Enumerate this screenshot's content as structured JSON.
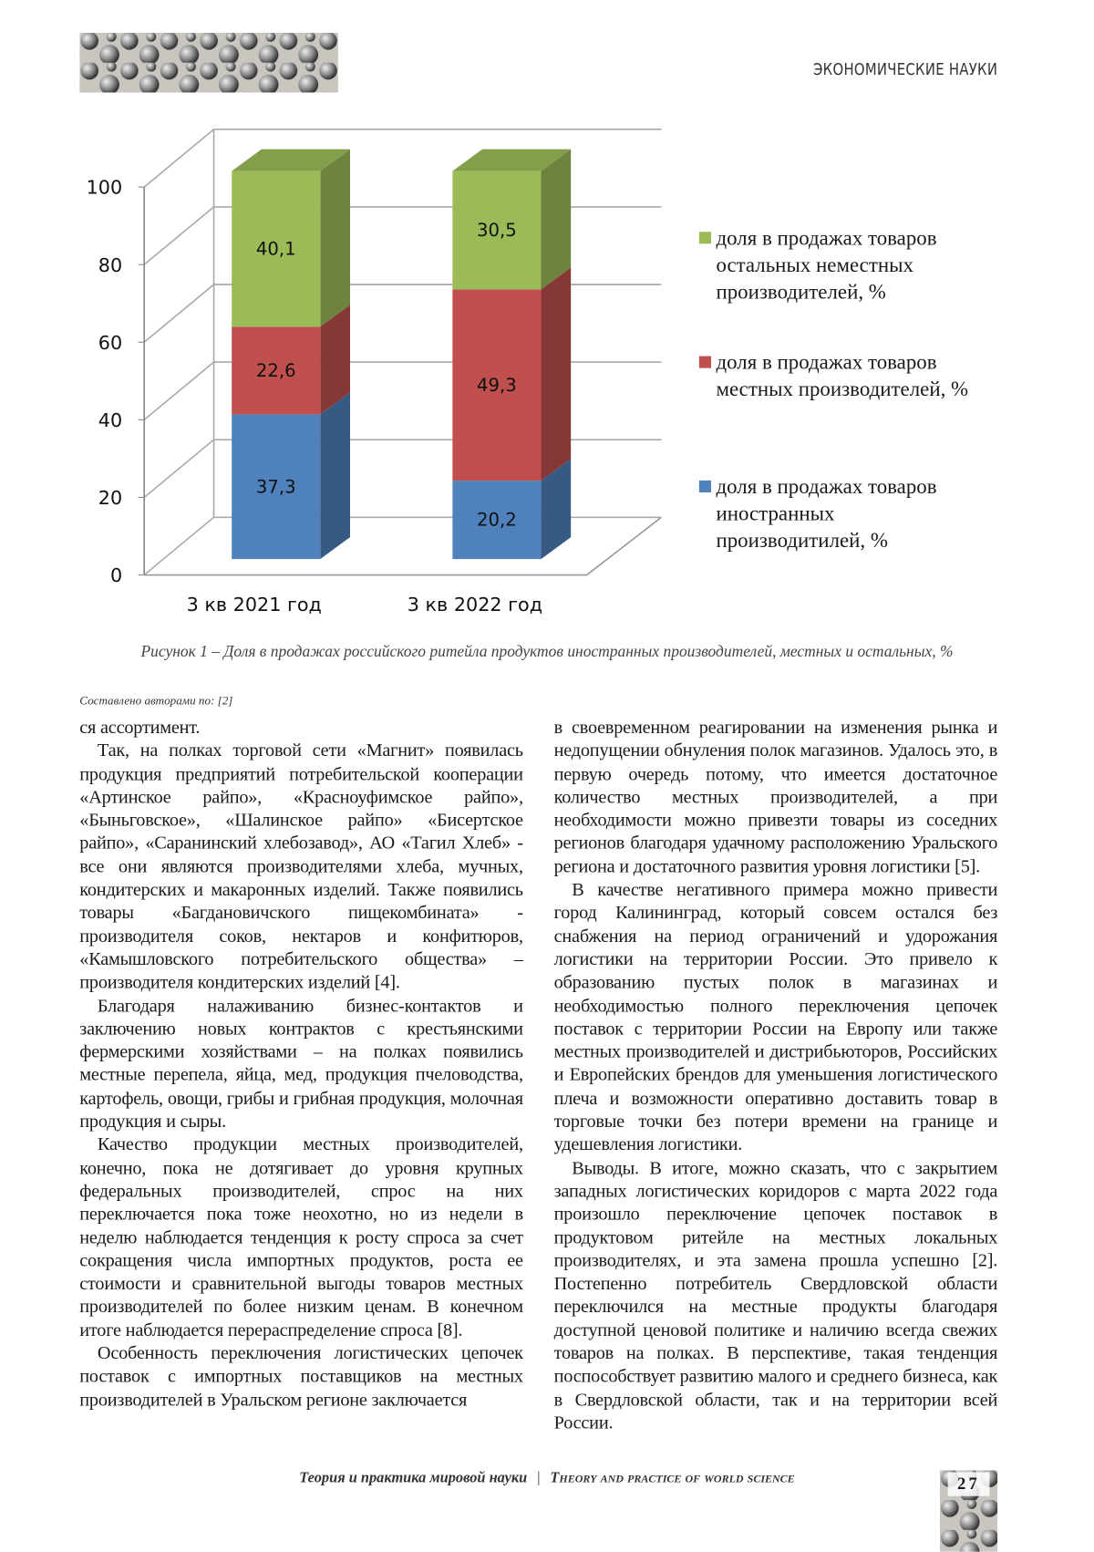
{
  "header": {
    "section": "ЭКОНОМИЧЕСКИЕ НАУКИ"
  },
  "chart_data": {
    "type": "bar",
    "stacked": true,
    "three_d": true,
    "categories": [
      "3 кв 2021 год",
      "3 кв 2022 год"
    ],
    "series": [
      {
        "name": "доля в продажах товаров иностранных производитилей, %",
        "color": "#4f81bd",
        "values": [
          37.3,
          20.2
        ],
        "value_labels": [
          "37,3",
          "20,2"
        ]
      },
      {
        "name": "доля в продажах товаров местных производителей, %",
        "color": "#c0504d",
        "values": [
          22.6,
          49.3
        ],
        "value_labels": [
          "22,6",
          "49,3"
        ]
      },
      {
        "name": "доля в продажах товаров остальных неместных производителей, %",
        "color": "#9bbb59",
        "values": [
          40.1,
          30.5
        ],
        "value_labels": [
          "40,1",
          "30,5"
        ]
      }
    ],
    "ylim": [
      0,
      100
    ],
    "yticks": [
      0,
      20,
      40,
      60,
      80,
      100
    ],
    "grid": true,
    "legend": "right"
  },
  "caption": "Рисунок 1 – Доля в продажах российского ритейла продуктов иностранных производителей, местных и остальных, %",
  "source": "Составлено авторами по: [2]",
  "columns": [
    [
      "ся ассортимент.",
      "Так, на полках торговой сети «Магнит» появилась продукция предприятий потребительской кооперации «Артинское райпо», «Красноуфимское райпо», «Быньговское», «Шалинское райпо» «Бисертское райпо», «Саранинский хлебозавод», АО «Тагил Хлеб» - все они являются производителями хлеба, мучных, кондитерских и макаронных изделий. Также появились товары «Багдановичского пищекомбината» - производителя соков, нектаров и конфитюров, «Камышловского потребительского общества» – производителя кондитерских изделий [4].",
      "Благодаря налаживанию бизнес-контактов и заключению новых контрактов с крестьянскими фермерскими хозяйствами – на полках появились местные перепела, яйца, мед, продукция пчеловодства, картофель, овощи, грибы и грибная продукция, молочная продукция и сыры.",
      "Качество продукции местных производителей, конечно, пока не дотягивает до уровня крупных федеральных производителей, спрос на них переключается пока тоже неохотно, но из недели в неделю наблюдается тенденция к росту спроса за счет сокращения числа импортных продуктов, роста ее стоимости и сравнительной выгоды товаров местных производителей по более низким ценам. В конечном итоге наблюдается перераспределение спроса [8].",
      "Особенность переключения логистических цепочек поставок с импортных поставщиков на местных производителей в Уральском регионе заключается"
    ],
    [
      "в своевременном реагировании на изменения рынка и недопущении обнуления полок магазинов. Удалось это, в первую очередь потому, что имеется достаточное количество местных производителей, а при необходимости можно привезти товары из соседних регионов благодаря удачному расположению Уральского региона и достаточного развития уровня логистики [5].",
      "В качестве негативного примера можно привести город Калининград, который совсем остался без снабжения на период ограничений и удорожания логистики на территории России. Это привело к образованию пустых полок в магазинах и необходимостью полного переключения цепочек поставок с территории России на Европу или также местных производителей и дистрибьюторов, Российских и Европейских брендов для уменьшения логистического плеча и возможности оперативно доставить товар в торговые точки без потери времени на границе и удешевления логистики.",
      "Выводы. В итоге, можно сказать, что с закрытием западных логистических коридоров с марта 2022 года произошло переключение цепочек поставок в продуктовом ритейле на местных локальных производителях, и эта замена прошла успешно [2]. Постепенно потребитель Свердловской области переключился на местные продукты благодаря доступной ценовой политике и наличию всегда свежих товаров на полках. В перспективе, такая тенденция поспособствует развитию малого и среднего бизнеса, как в Свердловской области, так и на территории всей России."
    ]
  ],
  "footer": {
    "journal_ru": "Теория и практика мировой науки",
    "journal_en": "Theory and practice of world science",
    "page": "27"
  }
}
